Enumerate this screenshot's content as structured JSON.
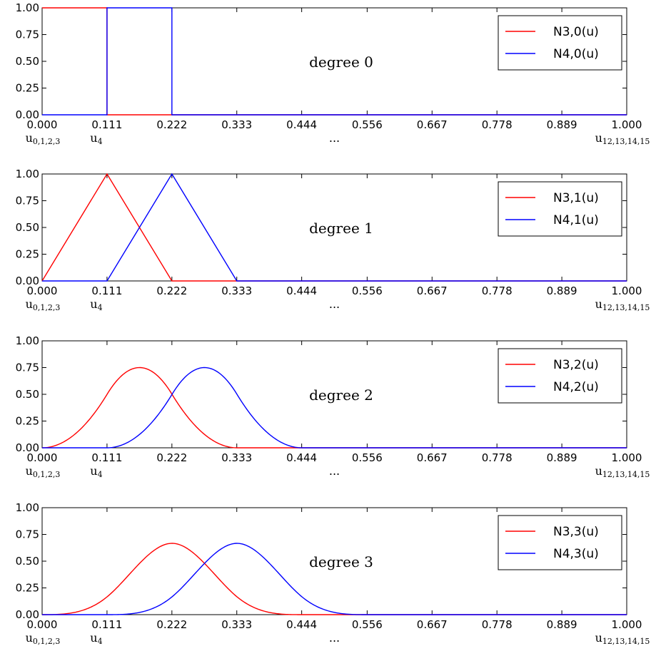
{
  "chart_data": [
    {
      "type": "line",
      "annotation": "degree 0",
      "degree": 0,
      "xlim": [
        0,
        1
      ],
      "ylim": [
        0,
        1
      ],
      "xticks": [
        "0.000",
        "0.111",
        "0.222",
        "0.333",
        "0.444",
        "0.556",
        "0.667",
        "0.778",
        "0.889",
        "1.000"
      ],
      "yticks": [
        "0.00",
        "0.25",
        "0.50",
        "0.75",
        "1.00"
      ],
      "legend_position": "top-right",
      "series": [
        {
          "name": "N3,0(u)",
          "color": "#ff0000",
          "knots": [
            0,
            0.111,
            0.111,
            1
          ],
          "values": [
            1,
            1,
            0,
            0
          ]
        },
        {
          "name": "N4,0(u)",
          "color": "#0000ff",
          "knots": [
            0,
            0.111,
            0.111,
            0.222,
            0.222,
            1
          ],
          "values": [
            0,
            0,
            1,
            1,
            0,
            0
          ]
        }
      ],
      "knot_labels": [
        {
          "x": 0,
          "base": "u",
          "sub": "0,1,2,3"
        },
        {
          "x": 0.111,
          "base": "u",
          "sub": "4"
        },
        {
          "x": 0.5,
          "base": "...",
          "sub": ""
        },
        {
          "x": 1,
          "base": "u",
          "sub": "12,13,14,15"
        }
      ]
    },
    {
      "type": "line",
      "annotation": "degree 1",
      "degree": 1,
      "xlim": [
        0,
        1
      ],
      "ylim": [
        0,
        1
      ],
      "xticks": [
        "0.000",
        "0.111",
        "0.222",
        "0.333",
        "0.444",
        "0.556",
        "0.667",
        "0.778",
        "0.889",
        "1.000"
      ],
      "yticks": [
        "0.00",
        "0.25",
        "0.50",
        "0.75",
        "1.00"
      ],
      "legend_position": "top-right",
      "series": [
        {
          "name": "N3,1(u)",
          "color": "#ff0000",
          "knots": [
            0,
            0.111,
            0.222,
            1
          ],
          "values": [
            0,
            1,
            0,
            0
          ]
        },
        {
          "name": "N4,1(u)",
          "color": "#0000ff",
          "knots": [
            0,
            0.111,
            0.222,
            0.333,
            1
          ],
          "values": [
            0,
            0,
            1,
            0,
            0
          ]
        }
      ],
      "knot_labels": [
        {
          "x": 0,
          "base": "u",
          "sub": "0,1,2,3"
        },
        {
          "x": 0.111,
          "base": "u",
          "sub": "4"
        },
        {
          "x": 0.5,
          "base": "...",
          "sub": ""
        },
        {
          "x": 1,
          "base": "u",
          "sub": "12,13,14,15"
        }
      ]
    },
    {
      "type": "line",
      "annotation": "degree 2",
      "degree": 2,
      "xlim": [
        0,
        1
      ],
      "ylim": [
        0,
        1
      ],
      "xticks": [
        "0.000",
        "0.111",
        "0.222",
        "0.333",
        "0.444",
        "0.556",
        "0.667",
        "0.778",
        "0.889",
        "1.000"
      ],
      "yticks": [
        "0.00",
        "0.25",
        "0.50",
        "0.75",
        "1.00"
      ],
      "legend_position": "top-right",
      "series": [
        {
          "name": "N3,2(u)",
          "color": "#ff0000",
          "support": [
            0,
            0.333
          ],
          "peak": 0.75
        },
        {
          "name": "N4,2(u)",
          "color": "#0000ff",
          "support": [
            0.111,
            0.444
          ],
          "peak": 0.75
        }
      ],
      "knot_labels": [
        {
          "x": 0,
          "base": "u",
          "sub": "0,1,2,3"
        },
        {
          "x": 0.111,
          "base": "u",
          "sub": "4"
        },
        {
          "x": 0.5,
          "base": "...",
          "sub": ""
        },
        {
          "x": 1,
          "base": "u",
          "sub": "12,13,14,15"
        }
      ]
    },
    {
      "type": "line",
      "annotation": "degree 3",
      "degree": 3,
      "xlim": [
        0,
        1
      ],
      "ylim": [
        0,
        1
      ],
      "xticks": [
        "0.000",
        "0.111",
        "0.222",
        "0.333",
        "0.444",
        "0.556",
        "0.667",
        "0.778",
        "0.889",
        "1.000"
      ],
      "yticks": [
        "0.00",
        "0.25",
        "0.50",
        "0.75",
        "1.00"
      ],
      "legend_position": "top-right",
      "series": [
        {
          "name": "N3,3(u)",
          "color": "#ff0000",
          "support": [
            0,
            0.444
          ],
          "peak": 0.667
        },
        {
          "name": "N4,3(u)",
          "color": "#0000ff",
          "support": [
            0.111,
            0.556
          ],
          "peak": 0.667
        }
      ],
      "knot_labels": [
        {
          "x": 0,
          "base": "u",
          "sub": "0,1,2,3"
        },
        {
          "x": 0.111,
          "base": "u",
          "sub": "4"
        },
        {
          "x": 0.5,
          "base": "...",
          "sub": ""
        },
        {
          "x": 1,
          "base": "u",
          "sub": "12,13,14,15"
        }
      ]
    }
  ]
}
